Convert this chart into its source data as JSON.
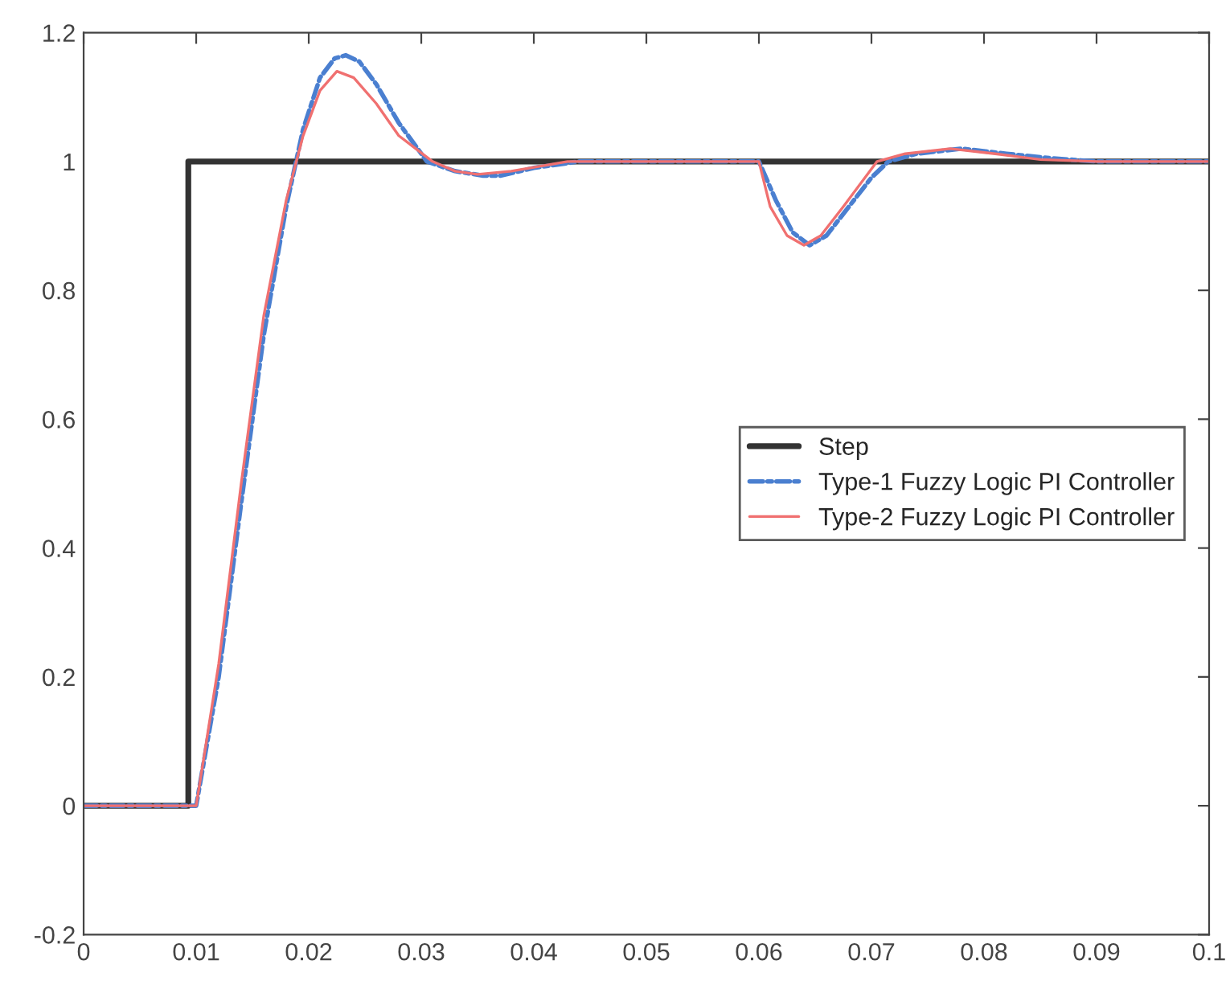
{
  "chart_data": {
    "type": "line",
    "xlim": [
      0,
      0.1
    ],
    "ylim": [
      -0.2,
      1.2
    ],
    "xticks": [
      0,
      0.01,
      0.02,
      0.03,
      0.04,
      0.05,
      0.06,
      0.07,
      0.08,
      0.09,
      0.1
    ],
    "yticks": [
      -0.2,
      0,
      0.2,
      0.4,
      0.6,
      0.8,
      1,
      1.2
    ],
    "grid": false,
    "legend": "right",
    "series": [
      {
        "name": "Step",
        "color": "#333333",
        "line_style": "solid",
        "x": [
          0,
          0.0093,
          0.0093,
          0.1
        ],
        "values": [
          0,
          0,
          1,
          1
        ]
      },
      {
        "name": "Type-1 Fuzzy Logic PI Controller",
        "color": "#4a7fd0",
        "line_style": "dashdot",
        "x": [
          0,
          0.01,
          0.012,
          0.014,
          0.016,
          0.018,
          0.0195,
          0.021,
          0.0223,
          0.0233,
          0.0245,
          0.026,
          0.028,
          0.0305,
          0.033,
          0.0355,
          0.037,
          0.04,
          0.044,
          0.05,
          0.06,
          0.0615,
          0.063,
          0.0645,
          0.066,
          0.068,
          0.07,
          0.0715,
          0.074,
          0.078,
          0.082,
          0.086,
          0.09,
          0.1
        ],
        "values": [
          0,
          0,
          0.2,
          0.47,
          0.73,
          0.93,
          1.05,
          1.13,
          1.16,
          1.165,
          1.155,
          1.12,
          1.06,
          1.0,
          0.985,
          0.978,
          0.978,
          0.99,
          1.0,
          1.0,
          1.0,
          0.94,
          0.89,
          0.87,
          0.885,
          0.93,
          0.975,
          1.0,
          1.012,
          1.02,
          1.012,
          1.005,
          1.0,
          1.0
        ]
      },
      {
        "name": "Type-2 Fuzzy Logic PI Controller",
        "color": "#f07070",
        "line_style": "solid",
        "x": [
          0,
          0.01,
          0.012,
          0.014,
          0.016,
          0.018,
          0.0195,
          0.021,
          0.0225,
          0.024,
          0.026,
          0.028,
          0.031,
          0.033,
          0.035,
          0.038,
          0.043,
          0.05,
          0.06,
          0.061,
          0.0625,
          0.064,
          0.0655,
          0.0675,
          0.0705,
          0.073,
          0.077,
          0.081,
          0.085,
          0.09,
          0.1
        ],
        "values": [
          0,
          0,
          0.22,
          0.5,
          0.76,
          0.94,
          1.04,
          1.11,
          1.14,
          1.13,
          1.09,
          1.04,
          1.0,
          0.985,
          0.98,
          0.985,
          1.0,
          1.0,
          1.0,
          0.93,
          0.885,
          0.87,
          0.885,
          0.93,
          1.0,
          1.012,
          1.02,
          1.012,
          1.003,
          1.0,
          1.0
        ]
      }
    ]
  }
}
